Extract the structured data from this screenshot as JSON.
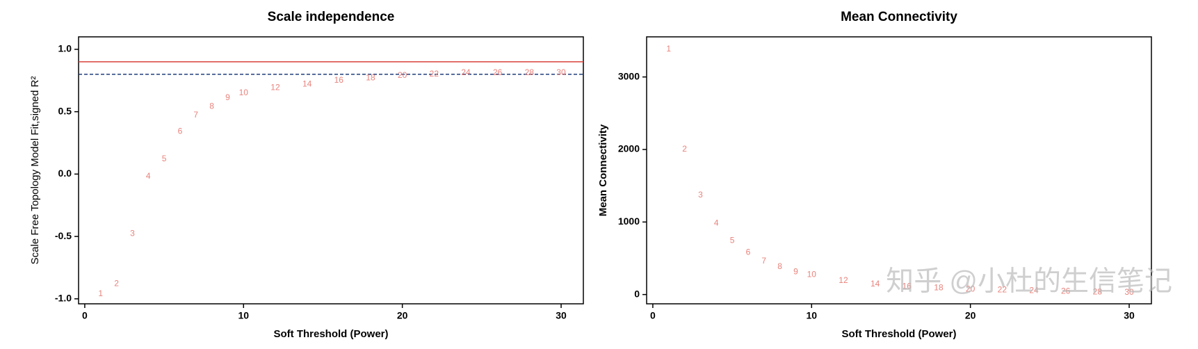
{
  "chart_data": [
    {
      "type": "scatter",
      "title": "Scale independence",
      "x_label": "Soft Threshold (Power)",
      "y_label": "Scale Free Topology Model Fit,signed R²",
      "x": [
        1,
        2,
        3,
        4,
        5,
        6,
        7,
        8,
        9,
        10,
        12,
        14,
        16,
        18,
        20,
        22,
        24,
        26,
        28,
        30
      ],
      "values": [
        -0.96,
        -0.88,
        -0.48,
        -0.02,
        0.12,
        0.34,
        0.47,
        0.54,
        0.61,
        0.65,
        0.69,
        0.72,
        0.75,
        0.77,
        0.79,
        0.8,
        0.81,
        0.81,
        0.81,
        0.81
      ],
      "color": "#e8837c",
      "xlim": [
        -0.39,
        31.4
      ],
      "xticks": [
        0,
        10,
        20,
        30
      ],
      "ylim": [
        -1.04,
        1.1
      ],
      "yticks": [
        {
          "value": -1,
          "label": "-1.0"
        },
        {
          "value": -0.5,
          "label": "-0.5"
        },
        {
          "value": 0,
          "label": "0.0"
        },
        {
          "value": 0.5,
          "label": "0.5"
        },
        {
          "value": 1,
          "label": "1.0"
        }
      ],
      "hlines": [
        {
          "value": 0.9,
          "color": "#d9413a",
          "style": "solid"
        },
        {
          "value": 0.8,
          "color": "#1f3d7a",
          "style": "dashed"
        }
      ]
    },
    {
      "type": "scatter",
      "title": "Mean Connectivity",
      "x_label": "Soft Threshold (Power)",
      "y_label": "Mean Connectivity",
      "x": [
        1,
        2,
        3,
        4,
        5,
        6,
        7,
        8,
        9,
        10,
        12,
        14,
        16,
        18,
        20,
        22,
        24,
        26,
        28,
        30
      ],
      "values": [
        3380,
        2000,
        1370,
        980,
        740,
        580,
        460,
        380,
        310,
        270,
        190,
        140,
        110,
        90,
        70,
        60,
        50,
        40,
        30,
        25
      ],
      "color": "#e8837c",
      "xlim": [
        -0.39,
        31.4
      ],
      "xticks": [
        0,
        10,
        20,
        30
      ],
      "ylim": [
        -128,
        3553
      ],
      "yticks": [
        0,
        1000,
        2000,
        3000
      ],
      "watermark": "知乎 @小杜的生信笔记"
    }
  ]
}
